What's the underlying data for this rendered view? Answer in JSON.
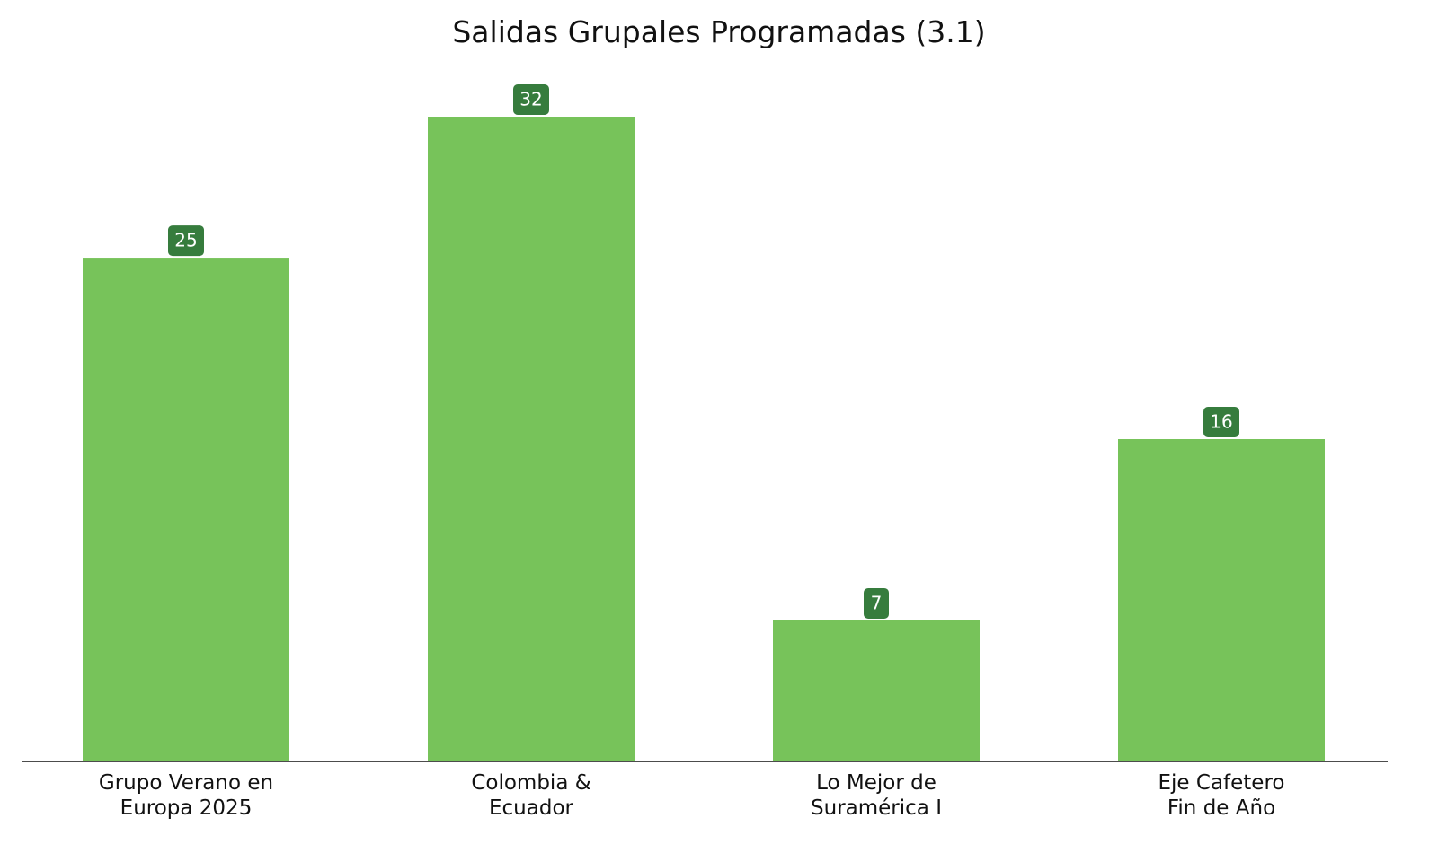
{
  "chart_data": {
    "type": "bar",
    "title": "Salidas Grupales Programadas (3.1)",
    "categories": [
      "Grupo Verano en\nEuropa 2025",
      "Colombia &\nEcuador",
      "Lo Mejor de\nSuramérica I",
      "Eje Cafetero\nFin de Año"
    ],
    "values": [
      25,
      32,
      7,
      16
    ],
    "color": "#77c35a",
    "label_color": "#367c3d"
  }
}
